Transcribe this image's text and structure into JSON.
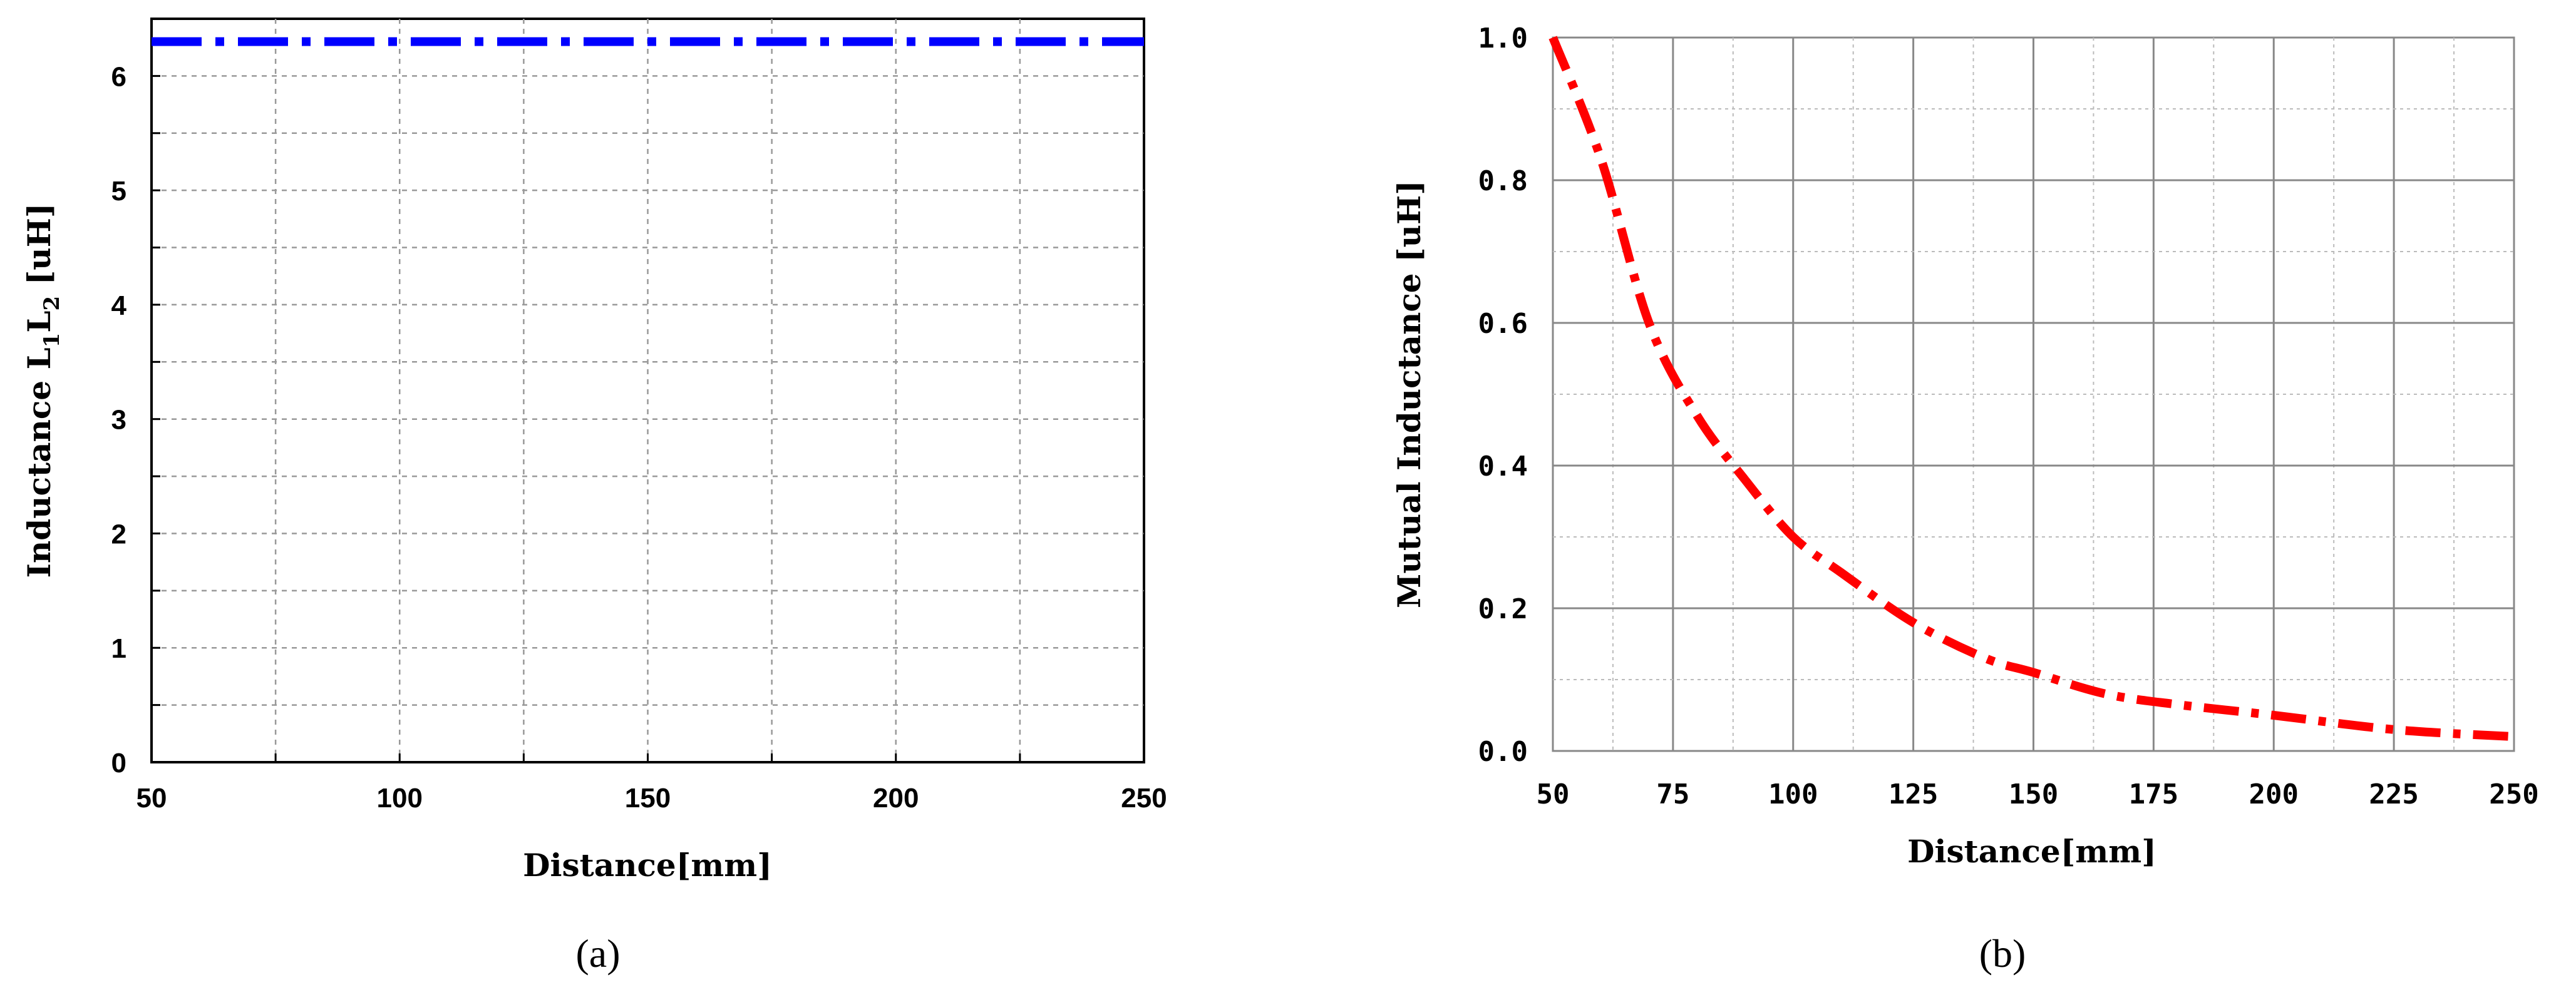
{
  "chart_data": [
    {
      "type": "line",
      "title": "",
      "xlabel": "Distance[mm]",
      "ylabel": "Inductance L1L2 [uH]",
      "ylabel_parts": {
        "main": "Inductance L",
        "s1": "1",
        "mid": "L",
        "s2": "2",
        "unit": " [uH]"
      },
      "xlim": [
        50,
        250
      ],
      "ylim": [
        0,
        6.5
      ],
      "xticks": [
        "50",
        "100",
        "150",
        "200",
        "250"
      ],
      "yticks": [
        "0",
        "1",
        "2",
        "3",
        "4",
        "5",
        "6"
      ],
      "grid": true,
      "series": [
        {
          "color": "#0000ff",
          "style": "dash-dot",
          "x": [
            50,
            75,
            100,
            125,
            150,
            175,
            200,
            225,
            250
          ],
          "y": [
            6.3,
            6.3,
            6.3,
            6.3,
            6.3,
            6.3,
            6.3,
            6.3,
            6.3
          ]
        }
      ],
      "caption": "(a)"
    },
    {
      "type": "line",
      "title": "",
      "xlabel": "Distance[mm]",
      "ylabel": "Mutual Inductance [uH]",
      "xlim": [
        50,
        250
      ],
      "ylim": [
        0,
        1.0
      ],
      "xticks": [
        "50",
        "75",
        "100",
        "125",
        "150",
        "175",
        "200",
        "225",
        "250"
      ],
      "yticks": [
        "0.0",
        "0.2",
        "0.4",
        "0.6",
        "0.8",
        "1.0"
      ],
      "grid": true,
      "series": [
        {
          "color": "#ff0000",
          "style": "dash-dot",
          "x": [
            50,
            60,
            70,
            80,
            90,
            100,
            110,
            125,
            140,
            150,
            165,
            180,
            200,
            225,
            250
          ],
          "y": [
            1.0,
            0.83,
            0.6,
            0.47,
            0.38,
            0.3,
            0.25,
            0.18,
            0.13,
            0.11,
            0.08,
            0.065,
            0.05,
            0.03,
            0.02
          ]
        }
      ],
      "caption": "(b)"
    }
  ]
}
